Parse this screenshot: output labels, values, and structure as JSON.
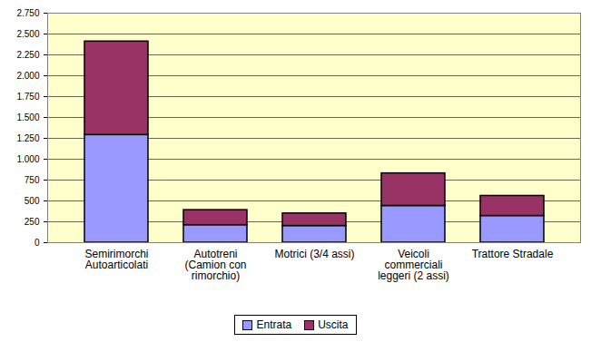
{
  "chart_data": {
    "type": "bar",
    "stacked": true,
    "grid": true,
    "legend": "bottom",
    "categories": [
      "Semirimorchi\nAutoarticolati",
      "Autotreni\n(Camion con\nrimorchio)",
      "Motrici (3/4 assi)",
      "Veicoli\ncommerciali\nleggeri (2 assi)",
      "Trattore Stradale"
    ],
    "series": [
      {
        "name": "Entrata",
        "color": "#9999ff",
        "values": [
          1290,
          210,
          200,
          440,
          320
        ]
      },
      {
        "name": "Uscita",
        "color": "#993366",
        "values": [
          1120,
          180,
          150,
          390,
          240
        ]
      }
    ],
    "ylim": [
      0,
      2750
    ],
    "yticks": [
      0,
      250,
      500,
      750,
      {
        "value": 1000,
        "label": "1.000"
      },
      {
        "value": 1250,
        "label": "1.250"
      },
      {
        "value": 1500,
        "label": "1.500"
      },
      {
        "value": 1750,
        "label": "1.750"
      },
      {
        "value": 2000,
        "label": "2.000"
      },
      {
        "value": 2250,
        "label": "2.250"
      },
      {
        "value": 2500,
        "label": "2.500"
      },
      {
        "value": 2750,
        "label": "2.750"
      }
    ]
  }
}
